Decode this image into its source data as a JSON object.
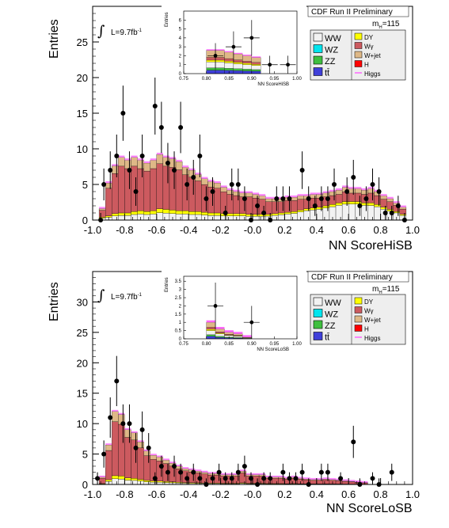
{
  "colors": {
    "WW": "#f2f2f2",
    "WZ": "#00e5ee",
    "ZZ": "#3fbf3f",
    "tt": "#3f3fd9",
    "DY": "#ffff00",
    "Wgamma": "#cc5a5f",
    "Wjet": "#deb887",
    "H": "#ff0000",
    "Higgs": "#ff66ff"
  },
  "charts": [
    {
      "key": "hi",
      "header": "CDF Run II Preliminary",
      "lumi_text": "L=9.7fb",
      "lumi_sup": "-1",
      "mass_text": "m",
      "mass_sub": "H",
      "mass_val": "=115",
      "ylabel": "Entries",
      "xlabel": "NN ScoreHiSB",
      "legend_left": [
        "WW",
        "WZ",
        "ZZ",
        "tt̄"
      ],
      "legend_right": [
        "DY",
        "Wγ",
        "W+jet",
        "H",
        "Higgs"
      ],
      "inset_xlabel": "NN ScoreHiSB",
      "inset_ylabel": "Entries"
    },
    {
      "key": "lo",
      "header": "CDF Run II Preliminary",
      "lumi_text": "L=9.7fb",
      "lumi_sup": "-1",
      "mass_text": "m",
      "mass_sub": "H",
      "mass_val": "=115",
      "ylabel": "Entries",
      "xlabel": "NN ScoreLoSB",
      "legend_left": [
        "WW",
        "WZ",
        "ZZ",
        "tt̄"
      ],
      "legend_right": [
        "DY",
        "Wγ",
        "W+jet",
        "H",
        "Higgs"
      ],
      "inset_xlabel": "NN ScoreLoSB",
      "inset_ylabel": "Entries"
    }
  ],
  "chart_data": [
    {
      "type": "bar",
      "title": "CDF Run II Preliminary",
      "xlabel": "NN ScoreHiSB",
      "ylabel": "Entries",
      "xlim": [
        -1.0,
        1.0
      ],
      "ylim": [
        0,
        30
      ],
      "xticks": [
        "-1.0",
        "-0.8",
        "-0.6",
        "-0.4",
        "-0.2",
        "-0.0",
        "0.2",
        "0.4",
        "0.6",
        "0.8",
        "1.0"
      ],
      "yticks": [
        "0",
        "5",
        "10",
        "15",
        "20",
        "25"
      ],
      "bin_width": 0.04,
      "bins_left_edge_start": -0.96,
      "total_bkg": [
        1.6,
        5.2,
        7.6,
        8.8,
        8.4,
        8.8,
        8.4,
        8.0,
        8.4,
        9.2,
        8.8,
        8.6,
        8.2,
        7.4,
        7.0,
        6.4,
        5.8,
        5.4,
        5.2,
        4.6,
        4.2,
        4.0,
        3.8,
        3.8,
        3.6,
        3.4,
        3.0,
        3.0,
        3.0,
        3.2,
        3.2,
        3.4,
        3.4,
        3.6,
        3.6,
        3.8,
        4.0,
        4.2,
        4.6,
        4.4,
        4.4,
        4.2,
        4.4,
        4.0,
        3.4,
        3.0,
        2.4,
        1.8
      ],
      "background_low": [
        0.4,
        0.6,
        0.9,
        1.0,
        1.0,
        1.2,
        1.3,
        1.2,
        1.3,
        1.6,
        1.5,
        1.4,
        1.3,
        1.3,
        1.2,
        1.2,
        1.1,
        1.0,
        1.0,
        0.9,
        0.9,
        0.9,
        0.9,
        0.8,
        0.8,
        0.8,
        0.8,
        0.9,
        1.0,
        1.1,
        1.2,
        1.4,
        1.6,
        1.7,
        1.8,
        2.0,
        2.2,
        2.4,
        2.6,
        2.6,
        2.6,
        2.4,
        2.4,
        2.2,
        1.8,
        1.5,
        1.2,
        0.8
      ],
      "data_points": [
        {
          "x": -0.95,
          "y": 0.0
        },
        {
          "x": -0.93,
          "y": 5.0
        },
        {
          "x": -0.89,
          "y": 7.0
        },
        {
          "x": -0.85,
          "y": 9.0
        },
        {
          "x": -0.81,
          "y": 15.0
        },
        {
          "x": -0.77,
          "y": 7.0
        },
        {
          "x": -0.73,
          "y": 4.0
        },
        {
          "x": -0.69,
          "y": 9.0
        },
        {
          "x": -0.61,
          "y": 16.0
        },
        {
          "x": -0.57,
          "y": 13.0
        },
        {
          "x": -0.53,
          "y": 8.0
        },
        {
          "x": -0.49,
          "y": 7.0
        },
        {
          "x": -0.45,
          "y": 13.0
        },
        {
          "x": -0.41,
          "y": 5.0
        },
        {
          "x": -0.37,
          "y": 6.0
        },
        {
          "x": -0.33,
          "y": 9.0
        },
        {
          "x": -0.29,
          "y": 3.0
        },
        {
          "x": -0.25,
          "y": 4.0
        },
        {
          "x": -0.17,
          "y": 1.0
        },
        {
          "x": -0.13,
          "y": 5.0
        },
        {
          "x": -0.09,
          "y": 5.0
        },
        {
          "x": -0.05,
          "y": 3.0
        },
        {
          "x": -0.01,
          "y": 0.0
        },
        {
          "x": 0.03,
          "y": 2.0
        },
        {
          "x": 0.07,
          "y": 1.0
        },
        {
          "x": 0.11,
          "y": 0.0
        },
        {
          "x": 0.15,
          "y": 3.0
        },
        {
          "x": 0.19,
          "y": 3.0
        },
        {
          "x": 0.23,
          "y": 3.0
        },
        {
          "x": 0.31,
          "y": 7.0
        },
        {
          "x": 0.35,
          "y": 3.0
        },
        {
          "x": 0.39,
          "y": 2.0
        },
        {
          "x": 0.43,
          "y": 3.0
        },
        {
          "x": 0.47,
          "y": 3.0
        },
        {
          "x": 0.51,
          "y": 5.0
        },
        {
          "x": 0.59,
          "y": 4.0
        },
        {
          "x": 0.63,
          "y": 6.0
        },
        {
          "x": 0.67,
          "y": 2.0
        },
        {
          "x": 0.71,
          "y": 3.0
        },
        {
          "x": 0.75,
          "y": 5.0
        },
        {
          "x": 0.79,
          "y": 4.0
        },
        {
          "x": 0.83,
          "y": 1.0
        },
        {
          "x": 0.87,
          "y": 1.0
        },
        {
          "x": 0.91,
          "y": 2.0
        },
        {
          "x": 0.95,
          "y": 0.0
        }
      ],
      "inset": {
        "xlim": [
          0.75,
          1.0
        ],
        "ylim": [
          0,
          7
        ],
        "xticks": [
          "0.75",
          "0.80",
          "0.85",
          "0.90",
          "0.95",
          "1.00"
        ],
        "yticks": [
          "0",
          "1",
          "2",
          "3",
          "4",
          "5",
          "6"
        ],
        "total_bkg": [
          2.6,
          2.6,
          2.4,
          2.2,
          2.0,
          1.8
        ],
        "data_points": [
          {
            "x": 0.82,
            "y": 2.0
          },
          {
            "x": 0.86,
            "y": 3.0
          },
          {
            "x": 0.9,
            "y": 4.0
          },
          {
            "x": 0.94,
            "y": 1.0
          },
          {
            "x": 0.98,
            "y": 1.0
          }
        ]
      }
    },
    {
      "type": "bar",
      "title": "CDF Run II Preliminary",
      "xlabel": "NN ScoreLoSB",
      "ylabel": "Entries",
      "xlim": [
        -1.0,
        1.0
      ],
      "ylim": [
        0,
        35
      ],
      "xticks": [
        "-1.0",
        "-0.8",
        "-0.6",
        "-0.4",
        "-0.2",
        "-0.0",
        "0.2",
        "0.4",
        "0.6",
        "0.8",
        "1.0"
      ],
      "yticks": [
        "0",
        "5",
        "10",
        "15",
        "20",
        "25",
        "30"
      ],
      "bin_width": 0.04,
      "bins_left_edge_start": -0.96,
      "total_bkg": [
        1.2,
        6.5,
        12.0,
        11.5,
        9.0,
        8.5,
        7.0,
        5.5,
        4.8,
        4.5,
        4.0,
        3.5,
        3.0,
        2.6,
        2.4,
        2.2,
        2.0,
        1.8,
        1.8,
        1.6,
        1.6,
        1.6,
        2.2,
        1.6,
        1.6,
        1.6,
        1.2,
        1.2,
        1.2,
        1.0,
        1.2,
        1.0,
        0.9,
        0.8,
        0.8,
        0.9,
        0.8,
        0.7,
        0.6,
        0.5,
        0.4,
        0.3,
        0.0,
        0.0,
        0.0,
        0.0,
        0.0,
        0.0
      ],
      "data_points": [
        {
          "x": -0.97,
          "y": 1.0
        },
        {
          "x": -0.93,
          "y": 5.0
        },
        {
          "x": -0.89,
          "y": 11.0
        },
        {
          "x": -0.85,
          "y": 17.0
        },
        {
          "x": -0.81,
          "y": 10.0
        },
        {
          "x": -0.77,
          "y": 10.0
        },
        {
          "x": -0.73,
          "y": 6.0
        },
        {
          "x": -0.69,
          "y": 9.0
        },
        {
          "x": -0.65,
          "y": 6.0
        },
        {
          "x": -0.61,
          "y": 1.0
        },
        {
          "x": -0.57,
          "y": 3.0
        },
        {
          "x": -0.53,
          "y": 2.0
        },
        {
          "x": -0.49,
          "y": 3.0
        },
        {
          "x": -0.45,
          "y": 2.0
        },
        {
          "x": -0.41,
          "y": 1.0
        },
        {
          "x": -0.37,
          "y": 2.0
        },
        {
          "x": -0.33,
          "y": 1.0
        },
        {
          "x": -0.29,
          "y": 0.0
        },
        {
          "x": -0.25,
          "y": 1.0
        },
        {
          "x": -0.21,
          "y": 2.0
        },
        {
          "x": -0.17,
          "y": 1.0
        },
        {
          "x": -0.13,
          "y": 1.0
        },
        {
          "x": -0.09,
          "y": 2.0
        },
        {
          "x": -0.05,
          "y": 3.0
        },
        {
          "x": -0.01,
          "y": 1.0
        },
        {
          "x": 0.03,
          "y": 0.0
        },
        {
          "x": 0.07,
          "y": 1.0
        },
        {
          "x": 0.11,
          "y": 1.0
        },
        {
          "x": 0.19,
          "y": 2.0
        },
        {
          "x": 0.23,
          "y": 1.0
        },
        {
          "x": 0.27,
          "y": 1.0
        },
        {
          "x": 0.31,
          "y": 2.0
        },
        {
          "x": 0.35,
          "y": 0.0
        },
        {
          "x": 0.43,
          "y": 2.0
        },
        {
          "x": 0.47,
          "y": 2.0
        },
        {
          "x": 0.55,
          "y": 1.0
        },
        {
          "x": 0.63,
          "y": 7.0
        },
        {
          "x": 0.67,
          "y": 0.0
        },
        {
          "x": 0.75,
          "y": 1.0
        },
        {
          "x": 0.79,
          "y": 0.0
        },
        {
          "x": 0.87,
          "y": 2.0
        }
      ],
      "inset": {
        "xlim": [
          0.75,
          1.0
        ],
        "ylim": [
          0,
          3.8
        ],
        "xticks": [
          "0.75",
          "0.80",
          "0.85",
          "0.90",
          "0.95",
          "1.00"
        ],
        "yticks": [
          "0",
          "0.5",
          "1",
          "1.5",
          "2",
          "2.5",
          "3",
          "3.5"
        ],
        "total_bkg": [
          1.0,
          0.6,
          0.4,
          0.3,
          0.1,
          0.0
        ],
        "data_points": [
          {
            "x": 0.82,
            "y": 2.0
          },
          {
            "x": 0.9,
            "y": 1.0
          }
        ]
      }
    }
  ]
}
